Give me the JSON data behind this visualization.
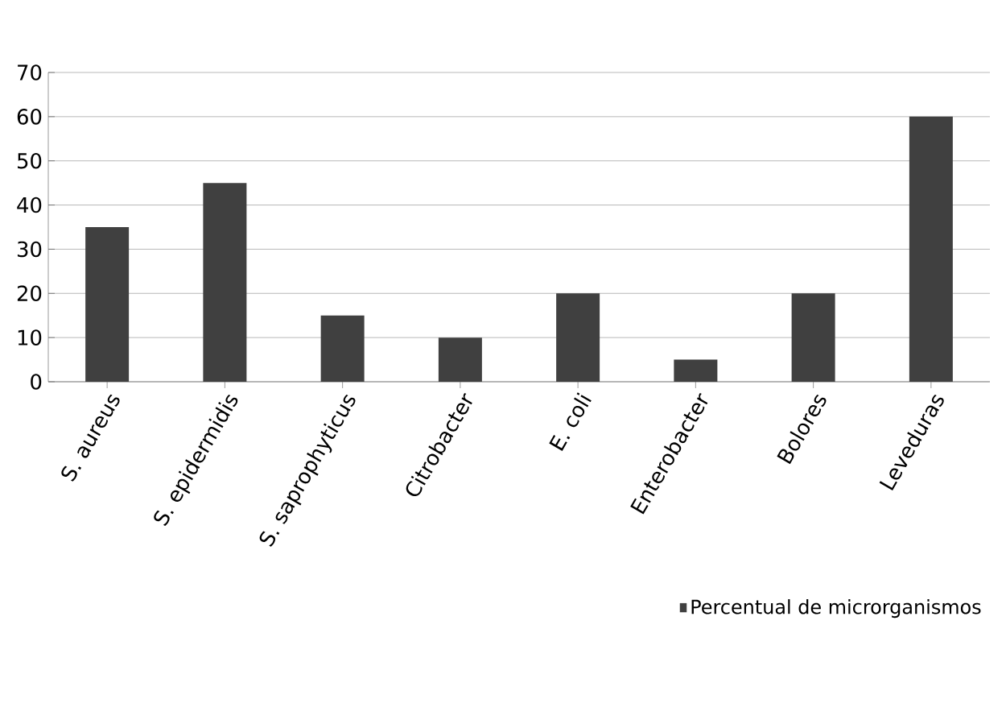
{
  "chart_data": {
    "type": "bar",
    "categories": [
      "S. aureus",
      "S. epidermidis",
      "S. saprophyticus",
      "Citrobacter",
      "E. coli",
      "Enterobacter",
      "Bolores",
      "Leveduras"
    ],
    "series": [
      {
        "name": "Percentual de microrganismos",
        "color": "#404040",
        "values": [
          35,
          45,
          15,
          10,
          20,
          5,
          20,
          60
        ]
      }
    ],
    "ylim": [
      0,
      70
    ],
    "yticks": [
      0,
      10,
      20,
      30,
      40,
      50,
      60,
      70
    ],
    "grid": "y",
    "legend": "bottom right"
  }
}
